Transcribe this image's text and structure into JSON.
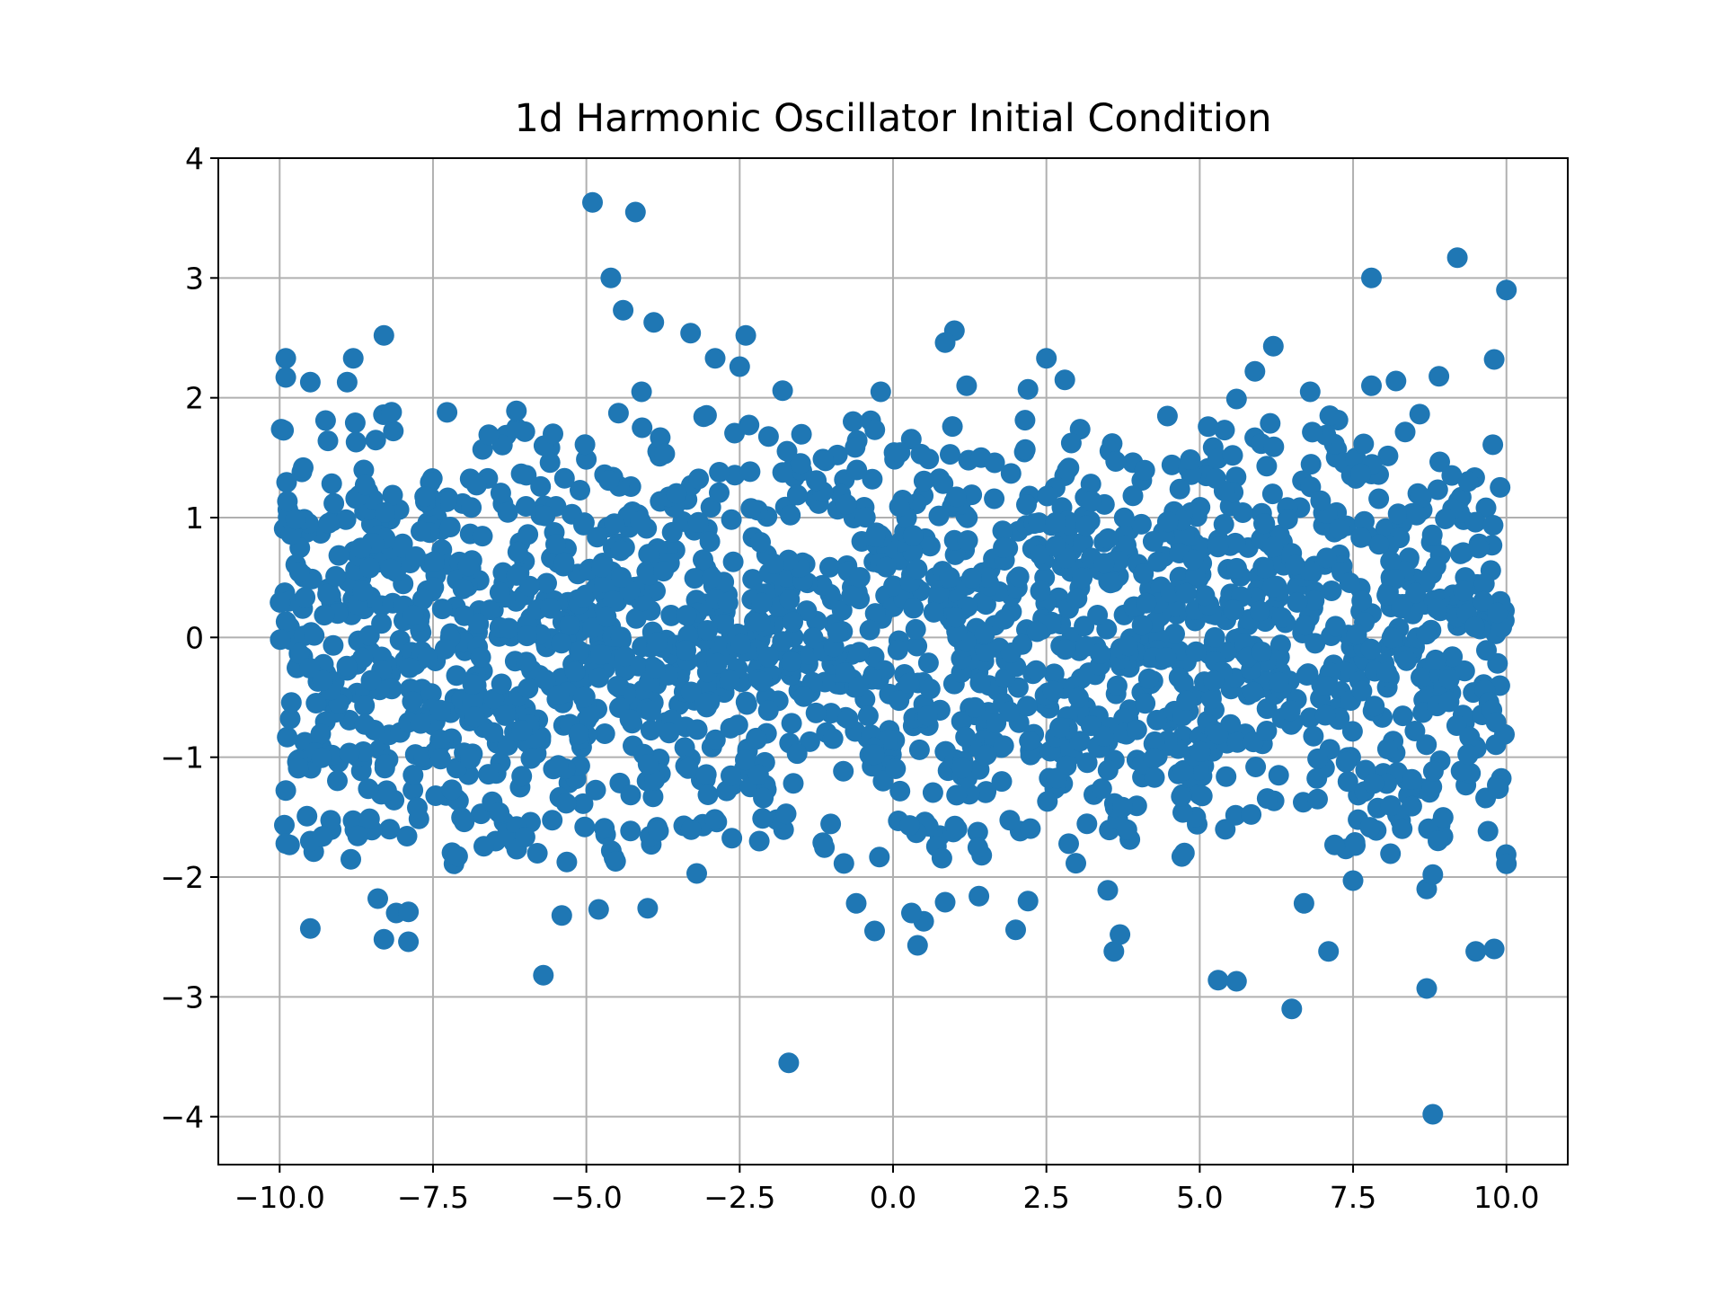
{
  "chart_data": {
    "type": "scatter",
    "title": "1d Harmonic Oscillator Initial Condition",
    "xlabel": "",
    "ylabel": "",
    "xlim": [
      -11,
      11
    ],
    "ylim": [
      -4.4,
      4.0
    ],
    "xticks": [
      -10.0,
      -7.5,
      -5.0,
      -2.5,
      0.0,
      2.5,
      5.0,
      7.5,
      10.0
    ],
    "xtick_labels": [
      "−10.0",
      "−7.5",
      "−5.0",
      "−2.5",
      "0.0",
      "2.5",
      "5.0",
      "7.5",
      "10.0"
    ],
    "yticks": [
      -4,
      -3,
      -2,
      -1,
      0,
      1,
      2,
      3,
      4
    ],
    "ytick_labels": [
      "−4",
      "−3",
      "−2",
      "−1",
      "0",
      "1",
      "2",
      "3",
      "4"
    ],
    "grid": true,
    "marker_color": "#1f77b4",
    "approx_point_count": 2000,
    "distribution": "x uniform on [-10, 10], y approximately normal with mean 0 and std 1",
    "notable_points": [
      {
        "x": -4.9,
        "y": 3.63
      },
      {
        "x": -4.2,
        "y": 3.55
      },
      {
        "x": -4.6,
        "y": 3.0
      },
      {
        "x": -4.4,
        "y": 2.73
      },
      {
        "x": -3.9,
        "y": 2.63
      },
      {
        "x": -3.3,
        "y": 2.54
      },
      {
        "x": -2.9,
        "y": 2.33
      },
      {
        "x": -2.4,
        "y": 2.52
      },
      {
        "x": -2.5,
        "y": 2.26
      },
      {
        "x": -8.3,
        "y": 2.52
      },
      {
        "x": -8.8,
        "y": 2.33
      },
      {
        "x": -9.9,
        "y": 2.33
      },
      {
        "x": -9.9,
        "y": 2.17
      },
      {
        "x": -9.5,
        "y": 2.13
      },
      {
        "x": -8.9,
        "y": 2.13
      },
      {
        "x": -4.1,
        "y": 2.05
      },
      {
        "x": -1.8,
        "y": 2.06
      },
      {
        "x": -0.2,
        "y": 2.05
      },
      {
        "x": 1.0,
        "y": 2.56
      },
      {
        "x": 0.85,
        "y": 2.46
      },
      {
        "x": 1.2,
        "y": 2.1
      },
      {
        "x": 2.5,
        "y": 2.33
      },
      {
        "x": 2.8,
        "y": 2.15
      },
      {
        "x": 2.2,
        "y": 2.07
      },
      {
        "x": 6.2,
        "y": 2.43
      },
      {
        "x": 5.9,
        "y": 2.22
      },
      {
        "x": 5.6,
        "y": 1.99
      },
      {
        "x": 6.8,
        "y": 2.05
      },
      {
        "x": 7.8,
        "y": 3.0
      },
      {
        "x": 7.8,
        "y": 2.1
      },
      {
        "x": 8.2,
        "y": 2.14
      },
      {
        "x": 8.9,
        "y": 2.18
      },
      {
        "x": 9.2,
        "y": 3.17
      },
      {
        "x": 10.0,
        "y": 2.9
      },
      {
        "x": 9.8,
        "y": 2.32
      },
      {
        "x": -1.7,
        "y": -3.55
      },
      {
        "x": -5.7,
        "y": -2.82
      },
      {
        "x": -9.5,
        "y": -2.43
      },
      {
        "x": -8.3,
        "y": -2.52
      },
      {
        "x": -7.9,
        "y": -2.54
      },
      {
        "x": -8.4,
        "y": -2.18
      },
      {
        "x": -8.1,
        "y": -2.3
      },
      {
        "x": -7.9,
        "y": -2.29
      },
      {
        "x": -5.4,
        "y": -2.32
      },
      {
        "x": -4.8,
        "y": -2.27
      },
      {
        "x": -4.0,
        "y": -2.26
      },
      {
        "x": -3.2,
        "y": -1.97
      },
      {
        "x": -0.3,
        "y": -2.45
      },
      {
        "x": -0.6,
        "y": -2.22
      },
      {
        "x": 0.4,
        "y": -2.57
      },
      {
        "x": 0.5,
        "y": -2.37
      },
      {
        "x": 0.3,
        "y": -2.3
      },
      {
        "x": 0.85,
        "y": -2.21
      },
      {
        "x": 1.4,
        "y": -2.16
      },
      {
        "x": 2.0,
        "y": -2.44
      },
      {
        "x": 2.2,
        "y": -2.2
      },
      {
        "x": 3.6,
        "y": -2.62
      },
      {
        "x": 3.7,
        "y": -2.48
      },
      {
        "x": 3.5,
        "y": -2.11
      },
      {
        "x": 5.3,
        "y": -2.86
      },
      {
        "x": 5.6,
        "y": -2.87
      },
      {
        "x": 6.5,
        "y": -3.1
      },
      {
        "x": 7.1,
        "y": -2.62
      },
      {
        "x": 6.7,
        "y": -2.22
      },
      {
        "x": 8.8,
        "y": -3.98
      },
      {
        "x": 8.7,
        "y": -2.93
      },
      {
        "x": 9.5,
        "y": -2.62
      },
      {
        "x": 9.8,
        "y": -2.6
      },
      {
        "x": 8.7,
        "y": -2.1
      },
      {
        "x": 8.8,
        "y": -1.98
      },
      {
        "x": 10.0,
        "y": -1.89
      },
      {
        "x": -9.9,
        "y": -1.72
      },
      {
        "x": -9.5,
        "y": -1.7
      },
      {
        "x": -9.3,
        "y": -1.66
      },
      {
        "x": 7.5,
        "y": -2.03
      }
    ]
  }
}
